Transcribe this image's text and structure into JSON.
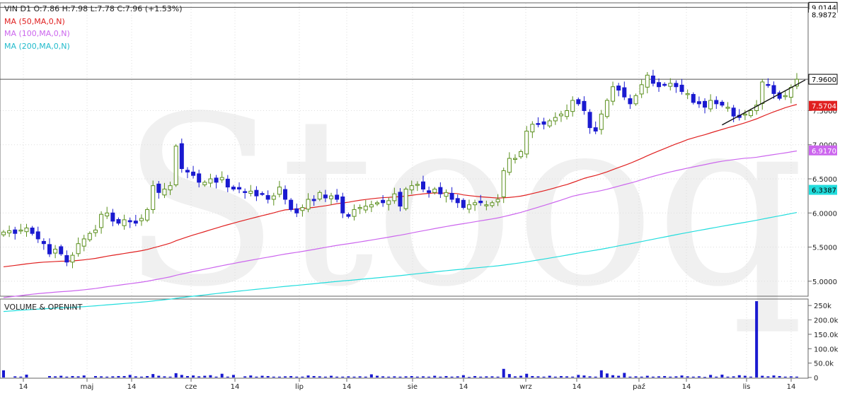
{
  "header": {
    "symbol_line": "VIN  D1  O:7.86  H:7.98  L:7.78  C:7.96  (+1.53%)",
    "ma50": "MA (50,MA,0,N)",
    "ma100": "MA (100,MA,0,N)",
    "ma200": "MA (200,MA,0,N)",
    "volume_title": "VOLUME & OPENINT"
  },
  "watermark": "Stooq",
  "colors": {
    "up": "#5a8f1c",
    "down": "#1a1ad0",
    "ma50": "#e02020",
    "ma100": "#cc66ee",
    "ma200": "#22dddd",
    "volume": "#1a1ad0",
    "grid": "#999999"
  },
  "chart_data": [
    {
      "type": "candlestick",
      "title": "VIN D1",
      "ylim": [
        4.78,
        9.08
      ],
      "y_ticks": [
        "5.0000",
        "5.5000",
        "6.0000",
        "6.5000",
        "7.0000",
        "7.5000"
      ],
      "x_ticks": [
        "14",
        "maj",
        "14",
        "cze",
        "14",
        "lip",
        "14",
        "sie",
        "14",
        "wrz",
        "14",
        "paź",
        "14",
        "lis",
        "14"
      ],
      "last_bar": {
        "open": 7.86,
        "high": 7.98,
        "low": 7.78,
        "close": 7.96,
        "change_pct": "+1.53%"
      },
      "closes": [
        5.72,
        5.74,
        5.7,
        5.75,
        5.78,
        5.7,
        5.62,
        5.55,
        5.4,
        5.47,
        5.4,
        5.28,
        5.38,
        5.55,
        5.62,
        5.7,
        5.75,
        5.98,
        6.0,
        5.88,
        5.85,
        5.9,
        5.87,
        5.85,
        5.92,
        6.05,
        6.4,
        6.3,
        6.35,
        6.4,
        6.98,
        6.65,
        6.6,
        6.55,
        6.45,
        6.45,
        6.5,
        6.45,
        6.52,
        6.38,
        6.35,
        6.35,
        6.3,
        6.32,
        6.25,
        6.28,
        6.2,
        6.25,
        6.38,
        6.2,
        6.05,
        6.0,
        6.08,
        6.2,
        6.18,
        6.3,
        6.22,
        6.25,
        6.2,
        6.0,
        5.95,
        6.05,
        6.08,
        6.1,
        6.12,
        6.15,
        6.15,
        6.18,
        6.28,
        6.1,
        6.35,
        6.4,
        6.42,
        6.35,
        6.3,
        6.35,
        6.28,
        6.3,
        6.2,
        6.15,
        6.08,
        6.12,
        6.15,
        6.15,
        6.12,
        6.15,
        6.2,
        6.62,
        6.8,
        6.8,
        6.9,
        7.2,
        7.3,
        7.3,
        7.3,
        7.35,
        7.4,
        7.45,
        7.5,
        7.65,
        7.6,
        7.5,
        7.25,
        7.2,
        7.45,
        7.65,
        7.85,
        7.8,
        7.7,
        7.6,
        7.72,
        7.88,
        8.02,
        7.9,
        7.85,
        7.88,
        7.9,
        7.85,
        7.78,
        7.75,
        7.62,
        7.6,
        7.55,
        7.65,
        7.6,
        7.58,
        7.55,
        7.42,
        7.4,
        7.45,
        7.5,
        7.58,
        7.92,
        7.88,
        7.75,
        7.68,
        7.72,
        7.84,
        7.96
      ],
      "series": [
        {
          "name": "MA (50,MA,0,N)",
          "last": "7.5704"
        },
        {
          "name": "MA (100,MA,0,N)",
          "last": "6.9170"
        },
        {
          "name": "MA (200,MA,0,N)",
          "last": "6.3387"
        }
      ],
      "price_labels": [
        "9.0144",
        "8.9872",
        "7.9600"
      ],
      "horizontal_lines": [
        9.0144,
        7.96
      ],
      "trendline": {
        "from": 7.29,
        "to": 7.95
      }
    },
    {
      "type": "bar",
      "title": "VOLUME & OPENINT",
      "ylim": [
        0,
        270000
      ],
      "y_ticks": [
        "0",
        "50.0k",
        "100.0k",
        "150.0k",
        "200.0k",
        "250k"
      ],
      "values": [
        25000,
        0,
        4000,
        3000,
        10000,
        0,
        0,
        0,
        5000,
        4000,
        6000,
        3000,
        5000,
        4000,
        7000,
        0,
        5000,
        4000,
        3000,
        4000,
        5000,
        5000,
        9000,
        4000,
        3000,
        5000,
        12000,
        6000,
        4000,
        3000,
        15000,
        9000,
        5000,
        7000,
        4000,
        6000,
        8000,
        3000,
        13000,
        3000,
        9000,
        0,
        4000,
        7000,
        3000,
        6000,
        5000,
        3000,
        3000,
        4000,
        5000,
        3000,
        3000,
        7000,
        5000,
        4000,
        3000,
        6000,
        3000,
        3000,
        4000,
        3000,
        4000,
        3000,
        11000,
        6000,
        4000,
        3000,
        4000,
        3000,
        4000,
        5000,
        3000,
        4000,
        3000,
        6000,
        3000,
        5000,
        3000,
        4000,
        8000,
        2000,
        5000,
        3000,
        4000,
        4000,
        3000,
        30000,
        12000,
        4000,
        6000,
        13000,
        5000,
        4000,
        3000,
        6000,
        3000,
        5000,
        4000,
        3000,
        9000,
        7000,
        4000,
        3000,
        25000,
        14000,
        8000,
        6000,
        16000,
        3000,
        4000,
        3000,
        6000,
        3000,
        4000,
        5000,
        3000,
        4000,
        7000,
        4000,
        3000,
        4000,
        2000,
        9000,
        3000,
        10000,
        3000,
        4000,
        8000,
        6000,
        3000,
        265000,
        6000,
        4000,
        7000,
        5000,
        3000,
        4000,
        3000
      ]
    }
  ],
  "axis_labels": {
    "price": [
      "9.0144",
      "8.9872",
      "7.9600",
      "7.5704",
      "6.9170",
      "6.3387"
    ]
  }
}
